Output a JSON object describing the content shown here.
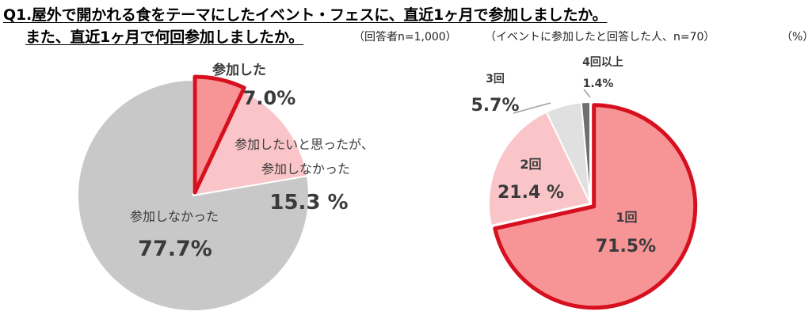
{
  "title": {
    "line1": "Q1.屋外で開かれる食をテーマにしたイベント・フェスに、直近1ヶ月で参加しましたか。",
    "line2": "また、直近1ヶ月で何回参加しましたか。",
    "note_base": "（回答者n=1,000）",
    "note_sub": "（イベントに参加したと回答した人、n=70）",
    "note_unit": "（%）"
  },
  "chart_data": [
    {
      "type": "pie",
      "slices": [
        {
          "label": "参加した",
          "value": 7.0,
          "display": "7.0%",
          "color": "#f79496",
          "highlight": true
        },
        {
          "label": "参加したいと思ったが、参加しなかった",
          "label_lines": [
            "参加したいと思ったが、",
            "参加しなかった"
          ],
          "value": 15.3,
          "display": "15.3 %",
          "color": "#fac5c8",
          "highlight": false
        },
        {
          "label": "参加しなかった",
          "value": 77.7,
          "display": "77.7%",
          "color": "#c8c8c8",
          "highlight": false
        }
      ]
    },
    {
      "type": "pie",
      "slices": [
        {
          "label": "1回",
          "value": 71.5,
          "display": "71.5%",
          "color": "#f79496",
          "highlight": true
        },
        {
          "label": "2回",
          "value": 21.4,
          "display": "21.4 %",
          "color": "#fac5c8",
          "highlight": false
        },
        {
          "label": "3回",
          "value": 5.7,
          "display": "5.7%",
          "color": "#e0e0e0",
          "highlight": false
        },
        {
          "label": "4回以上",
          "value": 1.4,
          "display": "1.4%",
          "color": "#707070",
          "highlight": false
        }
      ]
    }
  ],
  "colors": {
    "highlight_stroke": "#d6101e",
    "slice_stroke": "#ffffff",
    "leader": "#a0a0a0"
  }
}
